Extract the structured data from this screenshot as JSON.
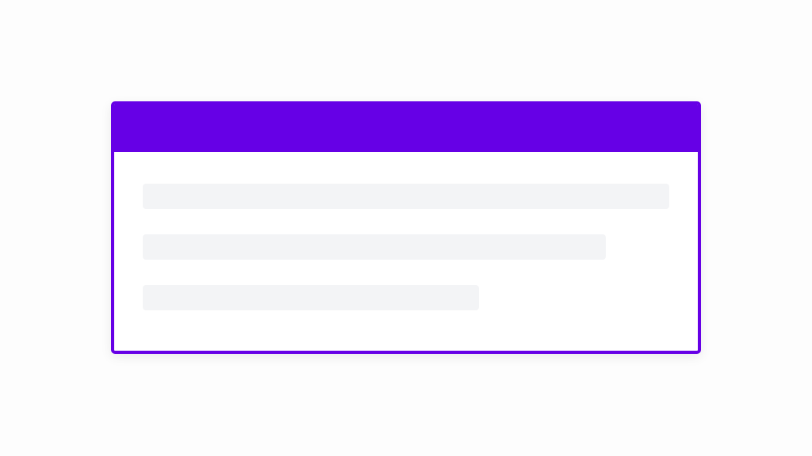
{
  "card": {
    "accent_color": "#6600e6",
    "skeleton_color": "#f3f4f6",
    "skeleton_lines": 3
  }
}
